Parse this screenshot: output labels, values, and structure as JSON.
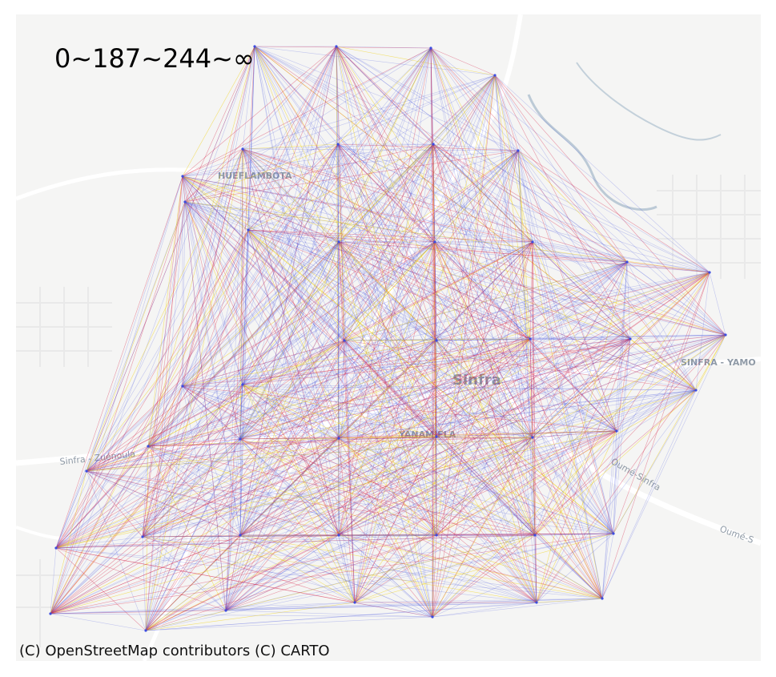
{
  "legend": {
    "title": "0~187~244~∞",
    "bins": [
      "0~187",
      "187~244",
      "244~∞"
    ],
    "colors": {
      "low": "#3d4de0",
      "mid": "#d6234a",
      "high": "#f0d000"
    }
  },
  "attribution": "(C) OpenStreetMap contributors (C) CARTO",
  "basemap": {
    "style": "CARTO Positron",
    "labels": [
      {
        "id": "hueflambota",
        "text": "HUEFLAMBOTA"
      },
      {
        "id": "sinfra",
        "text": "Sinfra"
      },
      {
        "id": "yanamifla",
        "text": "YANAMIFLA"
      },
      {
        "id": "sinfra-yamo",
        "text": "SINFRA - YAMO"
      },
      {
        "id": "sinfra-zuenoula",
        "text": "Sinfra - Zuénoula"
      },
      {
        "id": "oume-sinfra-1",
        "text": "Oumé-Sinfra"
      },
      {
        "id": "oume-sinfra-2",
        "text": "Oumé-S"
      }
    ]
  }
}
